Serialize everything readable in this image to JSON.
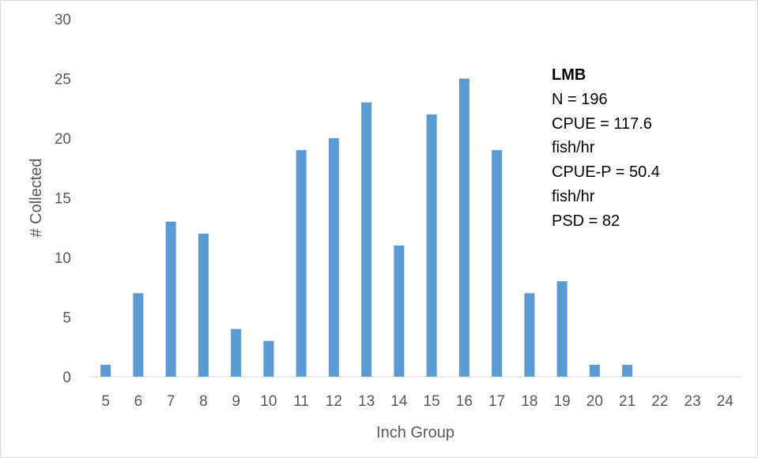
{
  "chart_data": {
    "type": "bar",
    "xlabel": "Inch Group",
    "ylabel": "# Collected",
    "ylim": [
      0,
      30
    ],
    "yticks": [
      0,
      5,
      10,
      15,
      20,
      25,
      30
    ],
    "categories": [
      "5",
      "6",
      "7",
      "8",
      "9",
      "10",
      "11",
      "12",
      "13",
      "14",
      "15",
      "16",
      "17",
      "18",
      "19",
      "20",
      "21",
      "22",
      "23",
      "24"
    ],
    "values": [
      1,
      7,
      13,
      12,
      4,
      3,
      19,
      20,
      23,
      11,
      22,
      25,
      19,
      7,
      8,
      1,
      1,
      0,
      0,
      0
    ],
    "bar_color": "#5b9bd5",
    "grid": false,
    "annotation": {
      "title": "LMB",
      "lines": [
        "N = 196",
        "CPUE = 117.6",
        "fish/hr",
        "CPUE-P = 50.4",
        "fish/hr",
        "PSD = 82"
      ]
    }
  }
}
